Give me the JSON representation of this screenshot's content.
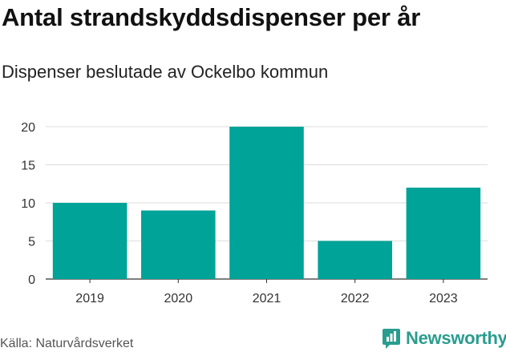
{
  "header": {
    "title": "Antal strandskyddsdispenser per år",
    "subtitle": "Dispenser beslutade av Ockelbo kommun"
  },
  "footer": {
    "source": "Källa: Naturvårdsverket",
    "brand": "Newsworthy",
    "brand_icon": "newsworthy-logo-icon"
  },
  "colors": {
    "bar": "#00a398",
    "grid": "#dddddd",
    "axis": "#333333",
    "brand": "#2a9d8f"
  },
  "chart_data": {
    "type": "bar",
    "title": "Antal strandskyddsdispenser per år",
    "subtitle": "Dispenser beslutade av Ockelbo kommun",
    "categories": [
      "2019",
      "2020",
      "2021",
      "2022",
      "2023"
    ],
    "values": [
      10,
      9,
      20,
      5,
      12
    ],
    "xlabel": "",
    "ylabel": "",
    "ylim": [
      0,
      20
    ],
    "yticks": [
      0,
      5,
      10,
      15,
      20
    ],
    "grid": true,
    "legend": "none"
  }
}
